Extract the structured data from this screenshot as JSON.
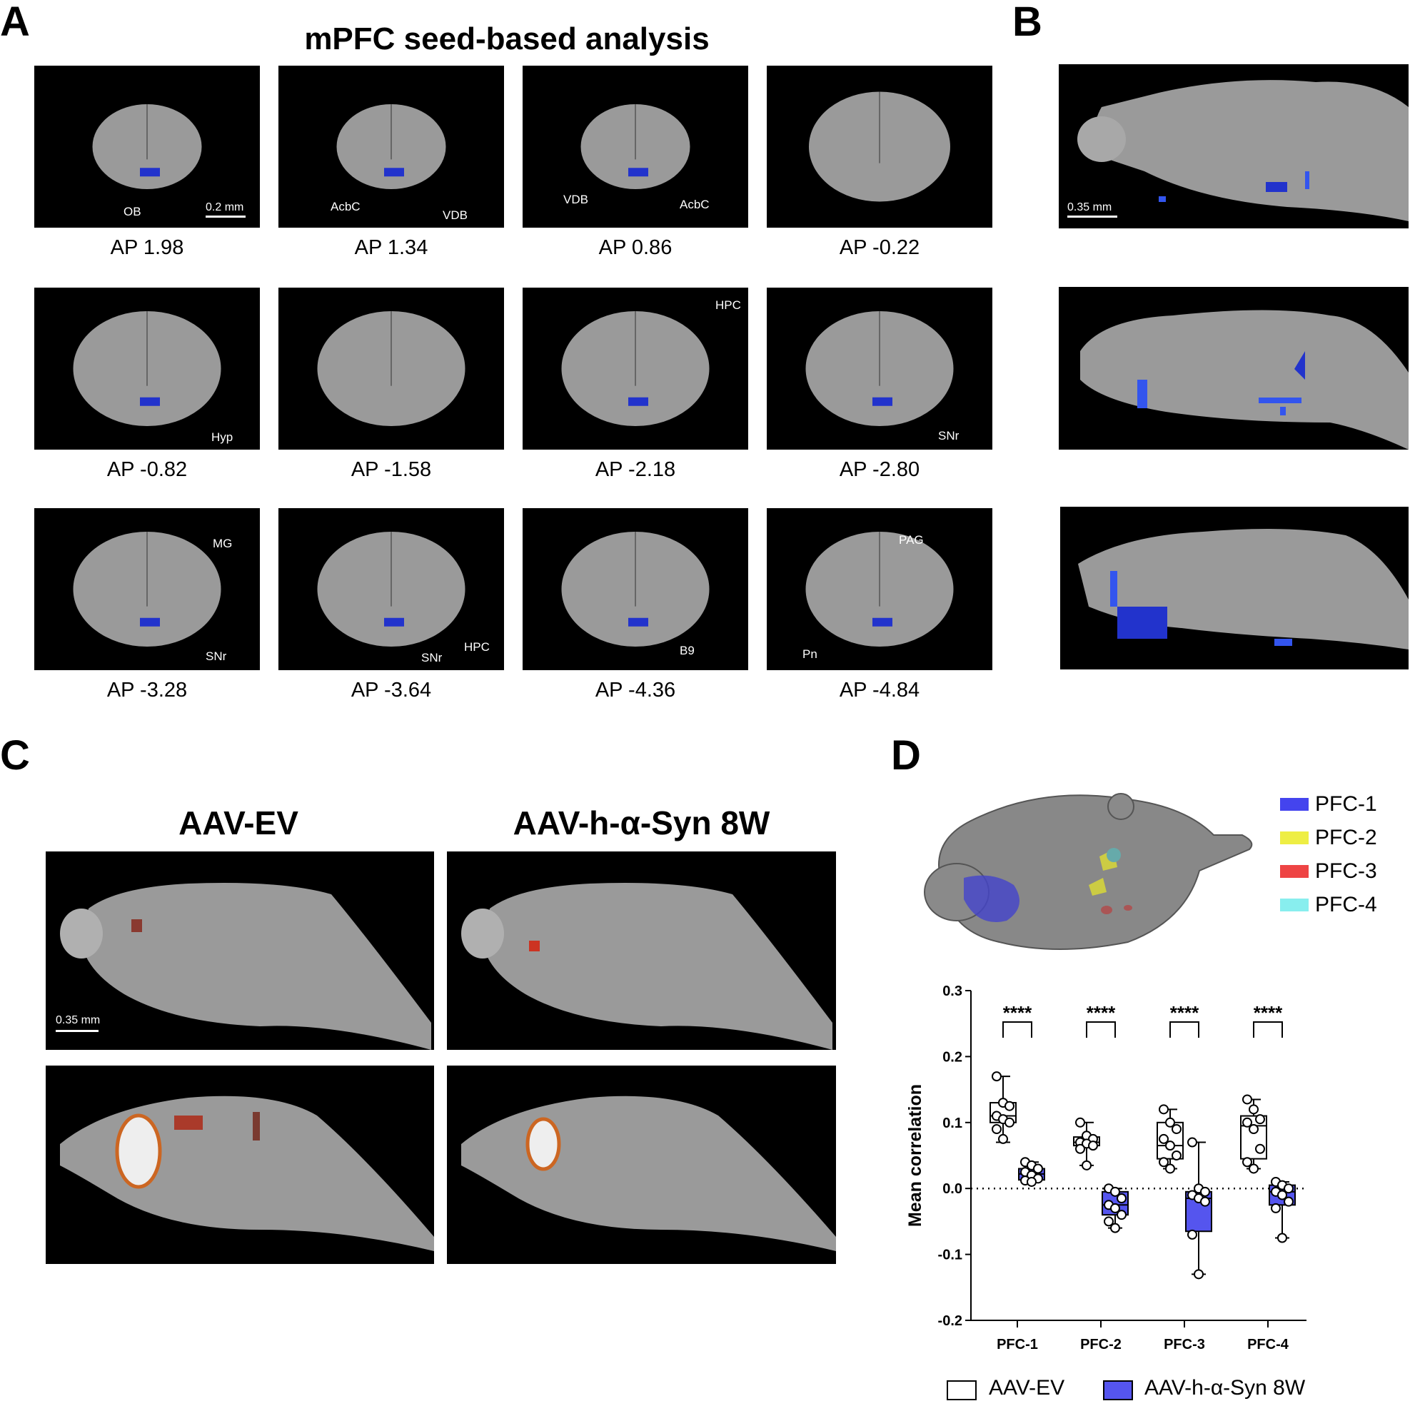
{
  "panels": {
    "A": "A",
    "B": "B",
    "C": "C",
    "D": "D"
  },
  "panel_a": {
    "title": "mPFC seed-based analysis",
    "scale_label": "0.2 mm",
    "tiles": [
      {
        "ap": "AP 1.98",
        "labels": [
          "OB"
        ]
      },
      {
        "ap": "AP 1.34",
        "labels": [
          "AcbC",
          "VDB"
        ]
      },
      {
        "ap": "AP 0.86",
        "labels": [
          "VDB",
          "AcbC"
        ]
      },
      {
        "ap": "AP -0.22",
        "labels": []
      },
      {
        "ap": "AP -0.82",
        "labels": [
          "Hyp"
        ]
      },
      {
        "ap": "AP -1.58",
        "labels": []
      },
      {
        "ap": "AP -2.18",
        "labels": [
          "HPC"
        ]
      },
      {
        "ap": "AP -2.80",
        "labels": [
          "SNr"
        ]
      },
      {
        "ap": "AP -3.28",
        "labels": [
          "MG",
          "SNr"
        ]
      },
      {
        "ap": "AP -3.64",
        "labels": [
          "SNr",
          "HPC"
        ]
      },
      {
        "ap": "AP -4.36",
        "labels": [
          "B9"
        ]
      },
      {
        "ap": "AP -4.84",
        "labels": [
          "PAG",
          "Pn"
        ]
      }
    ]
  },
  "panel_b": {
    "scale_label": "0.35 mm"
  },
  "panel_c": {
    "left_title": "AAV-EV",
    "right_title": "AAV-h-α-Syn 8W",
    "scale_label": "0.35 mm"
  },
  "panel_d": {
    "legend": [
      {
        "name": "PFC-1",
        "color": "#4444ee"
      },
      {
        "name": "PFC-2",
        "color": "#eeee44"
      },
      {
        "name": "PFC-3",
        "color": "#ee4444"
      },
      {
        "name": "PFC-4",
        "color": "#88eeee"
      }
    ],
    "bottom_legend": [
      "AAV-EV",
      "AAV-h-α-Syn 8W"
    ]
  },
  "chart_data": {
    "type": "box",
    "ylabel": "Mean correlation",
    "ylim": [
      -0.2,
      0.3
    ],
    "yticks": [
      "-0.2",
      "-0.1",
      "0.0",
      "0.1",
      "0.2",
      "0.3"
    ],
    "categories": [
      "PFC-1",
      "PFC-2",
      "PFC-3",
      "PFC-4"
    ],
    "significance": [
      "****",
      "****",
      "****",
      "****"
    ],
    "series": [
      {
        "name": "AAV-EV",
        "color": "#ffffff",
        "boxes": [
          {
            "min": 0.07,
            "q1": 0.1,
            "median": 0.11,
            "q3": 0.13,
            "max": 0.17,
            "points": [
              0.17,
              0.13,
              0.125,
              0.11,
              0.105,
              0.1,
              0.09,
              0.075
            ]
          },
          {
            "min": 0.035,
            "q1": 0.065,
            "median": 0.07,
            "q3": 0.078,
            "max": 0.1,
            "points": [
              0.1,
              0.08,
              0.075,
              0.07,
              0.068,
              0.065,
              0.06,
              0.035
            ]
          },
          {
            "min": 0.03,
            "q1": 0.045,
            "median": 0.065,
            "q3": 0.1,
            "max": 0.12,
            "points": [
              0.12,
              0.1,
              0.09,
              0.075,
              0.065,
              0.05,
              0.04,
              0.03
            ]
          },
          {
            "min": 0.03,
            "q1": 0.045,
            "median": 0.095,
            "q3": 0.11,
            "max": 0.135,
            "points": [
              0.135,
              0.12,
              0.105,
              0.1,
              0.09,
              0.06,
              0.04,
              0.03
            ]
          }
        ]
      },
      {
        "name": "AAV-h-α-Syn 8W",
        "color": "#5555ee",
        "boxes": [
          {
            "min": 0.01,
            "q1": 0.013,
            "median": 0.022,
            "q3": 0.03,
            "max": 0.04,
            "points": [
              0.04,
              0.035,
              0.03,
              0.025,
              0.02,
              0.015,
              0.012,
              0.01
            ]
          },
          {
            "min": -0.06,
            "q1": -0.04,
            "median": -0.025,
            "q3": -0.005,
            "max": 0.0,
            "points": [
              0.0,
              -0.005,
              -0.015,
              -0.025,
              -0.03,
              -0.04,
              -0.05,
              -0.06
            ]
          },
          {
            "min": -0.13,
            "q1": -0.065,
            "median": -0.015,
            "q3": -0.005,
            "max": 0.07,
            "points": [
              0.07,
              0.0,
              -0.005,
              -0.01,
              -0.015,
              -0.02,
              -0.07,
              -0.13
            ]
          },
          {
            "min": -0.075,
            "q1": -0.025,
            "median": -0.005,
            "q3": 0.005,
            "max": 0.01,
            "points": [
              0.01,
              0.005,
              0.0,
              -0.005,
              -0.01,
              -0.02,
              -0.03,
              -0.075
            ]
          }
        ]
      }
    ]
  }
}
